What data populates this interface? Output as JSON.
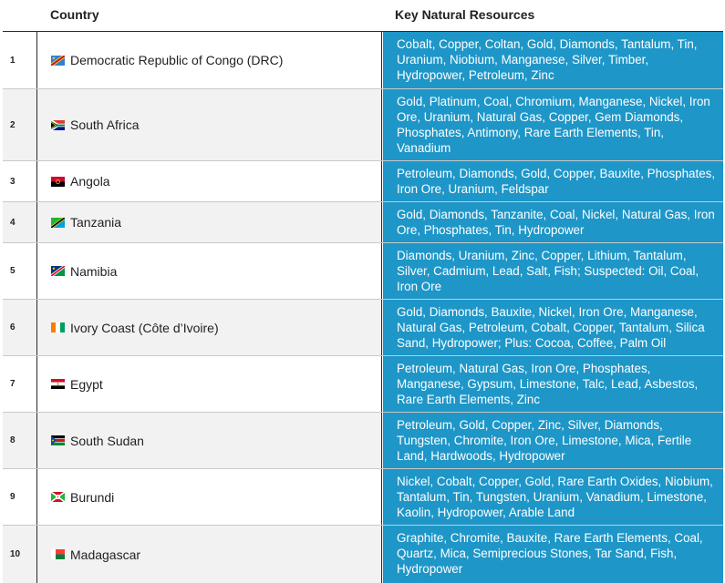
{
  "header": {
    "country_label": "Country",
    "resources_label": "Key Natural Resources"
  },
  "rows": [
    {
      "num": "1",
      "country": "Democratic Republic of Congo (DRC)",
      "flag": "drc-flag-icon",
      "resources": "Cobalt, Copper, Coltan, Gold, Diamonds, Tantalum, Tin, Uranium, Niobium, Manganese, Silver, Timber, Hydropower, Petroleum, Zinc"
    },
    {
      "num": "2",
      "country": "South Africa",
      "flag": "south-africa-flag-icon",
      "resources": "Gold, Platinum, Coal, Chromium, Manganese, Nickel, Iron Ore, Uranium, Natural Gas, Copper, Gem Diamonds, Phosphates, Antimony, Rare Earth Elements, Tin, Vanadium"
    },
    {
      "num": "3",
      "country": "Angola",
      "flag": "angola-flag-icon",
      "resources": "Petroleum, Diamonds, Gold, Copper, Bauxite, Phosphates, Iron Ore, Uranium, Feldspar"
    },
    {
      "num": "4",
      "country": "Tanzania",
      "flag": "tanzania-flag-icon",
      "resources": "Gold, Diamonds, Tanzanite, Coal, Nickel, Natural Gas, Iron Ore, Phosphates, Tin, Hydropower"
    },
    {
      "num": "5",
      "country": "Namibia",
      "flag": "namibia-flag-icon",
      "resources": "Diamonds, Uranium, Zinc, Copper, Lithium, Tantalum, Silver, Cadmium, Lead, Salt, Fish; Suspected: Oil, Coal, Iron Ore"
    },
    {
      "num": "6",
      "country": "Ivory Coast (Côte d’Ivoire)",
      "flag": "ivory-coast-flag-icon",
      "resources": "Gold, Diamonds, Bauxite, Nickel, Iron Ore, Manganese, Natural Gas, Petroleum, Cobalt, Copper, Tantalum, Silica Sand, Hydropower; Plus: Cocoa, Coffee, Palm Oil"
    },
    {
      "num": "7",
      "country": "Egypt",
      "flag": "egypt-flag-icon",
      "resources": "Petroleum, Natural Gas, Iron Ore, Phosphates, Manganese, Gypsum, Limestone, Talc, Lead, Asbestos, Rare Earth Elements, Zinc"
    },
    {
      "num": "8",
      "country": "South Sudan",
      "flag": "south-sudan-flag-icon",
      "resources": "Petroleum, Gold, Copper, Zinc, Silver, Diamonds, Tungsten, Chromite, Iron Ore, Limestone, Mica, Fertile Land, Hardwoods, Hydropower"
    },
    {
      "num": "9",
      "country": "Burundi",
      "flag": "burundi-flag-icon",
      "resources": "Nickel, Cobalt, Copper, Gold, Rare Earth Oxides, Niobium, Tantalum, Tin, Tungsten, Uranium, Vanadium, Limestone, Kaolin, Hydropower, Arable Land"
    },
    {
      "num": "10",
      "country": "Madagascar",
      "flag": "madagascar-flag-icon",
      "resources": "Graphite, Chromite, Bauxite, Rare Earth Elements, Coal, Quartz, Mica, Semiprecious Stones, Tar Sand, Fish, Hydropower"
    }
  ]
}
